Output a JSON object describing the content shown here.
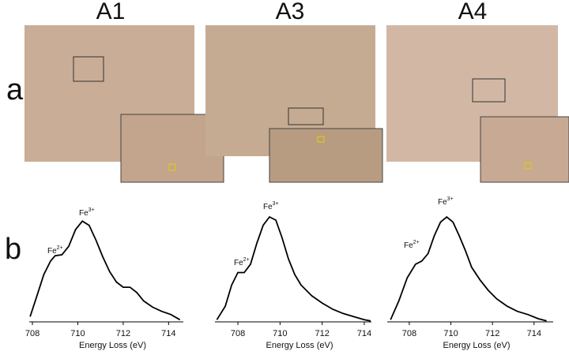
{
  "panel_labels": [
    "a",
    "b"
  ],
  "images": [
    {
      "label": "A1"
    },
    {
      "label": "A3"
    },
    {
      "label": "A4"
    }
  ],
  "chart_data": [
    {
      "type": "line",
      "xlabel": "Energy Loss (eV)",
      "color": "#000000",
      "xlim": [
        707.86,
        714.65
      ],
      "ylim": [
        0,
        1
      ],
      "xticks": [
        708,
        710,
        712,
        714
      ],
      "annotations": [
        {
          "base": "Fe",
          "sup": "2+"
        },
        {
          "base": "Fe",
          "sup": "3+"
        }
      ],
      "x": [
        707.9,
        708.2,
        708.5,
        708.8,
        709.0,
        709.3,
        709.6,
        709.9,
        710.2,
        710.5,
        710.8,
        711.1,
        711.4,
        711.7,
        712.0,
        712.3,
        712.6,
        712.9,
        713.3,
        713.7,
        714.1,
        714.5
      ],
      "values": [
        0.05,
        0.25,
        0.45,
        0.58,
        0.63,
        0.64,
        0.72,
        0.88,
        0.96,
        0.92,
        0.78,
        0.62,
        0.48,
        0.38,
        0.33,
        0.33,
        0.28,
        0.2,
        0.14,
        0.1,
        0.07,
        0.02
      ]
    },
    {
      "type": "line",
      "xlabel": "Energy Loss (eV)",
      "color": "#000000",
      "xlim": [
        706.91,
        714.34
      ],
      "ylim": [
        0,
        1
      ],
      "xticks": [
        708,
        710,
        712,
        714
      ],
      "annotations": [
        {
          "base": "Fe",
          "sup": "2+"
        },
        {
          "base": "Fe",
          "sup": "3+"
        }
      ],
      "x": [
        707.0,
        707.4,
        707.7,
        708.0,
        708.3,
        708.6,
        708.9,
        709.2,
        709.5,
        709.8,
        710.1,
        710.4,
        710.7,
        711.0,
        711.5,
        712.0,
        712.5,
        713.0,
        713.5,
        714.0,
        714.3
      ],
      "values": [
        0.02,
        0.15,
        0.35,
        0.47,
        0.47,
        0.55,
        0.75,
        0.92,
        1.0,
        0.97,
        0.8,
        0.6,
        0.45,
        0.35,
        0.25,
        0.18,
        0.12,
        0.08,
        0.05,
        0.02,
        0.01
      ]
    },
    {
      "type": "line",
      "xlabel": "Energy Loss (eV)",
      "color": "#000000",
      "xlim": [
        706.94,
        714.92
      ],
      "ylim": [
        0,
        1
      ],
      "xticks": [
        708,
        710,
        712,
        714
      ],
      "annotations": [
        {
          "base": "Fe",
          "sup": "2+"
        },
        {
          "base": "Fe",
          "sup": "3+"
        }
      ],
      "x": [
        707.1,
        707.5,
        707.9,
        708.3,
        708.6,
        708.9,
        709.2,
        709.5,
        709.8,
        710.1,
        710.4,
        710.7,
        711.0,
        711.4,
        711.8,
        712.2,
        712.7,
        713.2,
        713.7,
        714.2,
        714.6
      ],
      "values": [
        0.02,
        0.2,
        0.42,
        0.55,
        0.58,
        0.65,
        0.82,
        0.95,
        1.0,
        0.95,
        0.82,
        0.68,
        0.52,
        0.4,
        0.3,
        0.22,
        0.15,
        0.1,
        0.07,
        0.03,
        0.01
      ]
    }
  ]
}
